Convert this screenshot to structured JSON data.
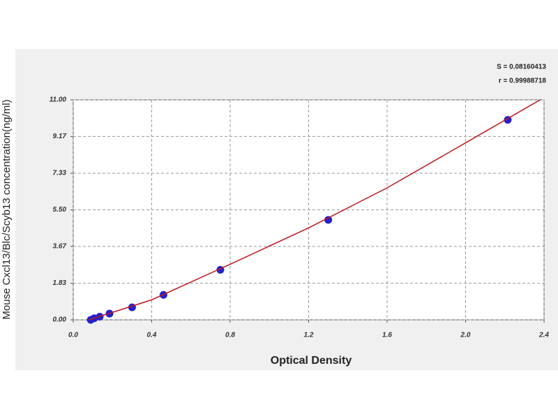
{
  "chart_data": {
    "type": "scatter",
    "x_label": "Optical Density",
    "y_label": "Mouse Cxcl13/Blc/Scyb13 concentration(ng/ml)",
    "annotations": [
      "S = 0.08160413",
      "r = 0.99988718"
    ],
    "xlim": [
      0,
      2.4
    ],
    "ylim": [
      0,
      11
    ],
    "xticks": [
      {
        "value": 0,
        "label": "0.0"
      },
      0.4,
      0.8,
      1.2,
      1.6,
      {
        "value": 2,
        "label": "2.0"
      },
      2.4
    ],
    "yticks": [
      {
        "value": 0,
        "label": "0.00"
      },
      1.83,
      3.67,
      {
        "value": 5.5,
        "label": "5.50"
      },
      7.33,
      9.17,
      {
        "value": 11,
        "label": "11.00"
      }
    ],
    "grid": true,
    "series": [
      {
        "mode": "markers",
        "color": "#2222cc",
        "x": [
          0.089,
          0.107,
          0.135,
          0.185,
          0.3,
          0.46,
          0.75,
          1.3,
          2.215
        ],
        "values": [
          0,
          0.078,
          0.156,
          0.3125,
          0.625,
          1.25,
          2.5,
          5,
          10
        ]
      },
      {
        "mode": "line",
        "color": "#c0181c",
        "x": [
          0.08,
          0.4,
          0.8,
          1.2,
          1.6,
          2.0,
          2.38
        ],
        "values": [
          0,
          1.0,
          2.78,
          4.6,
          6.6,
          8.85,
          11.0
        ]
      }
    ]
  }
}
